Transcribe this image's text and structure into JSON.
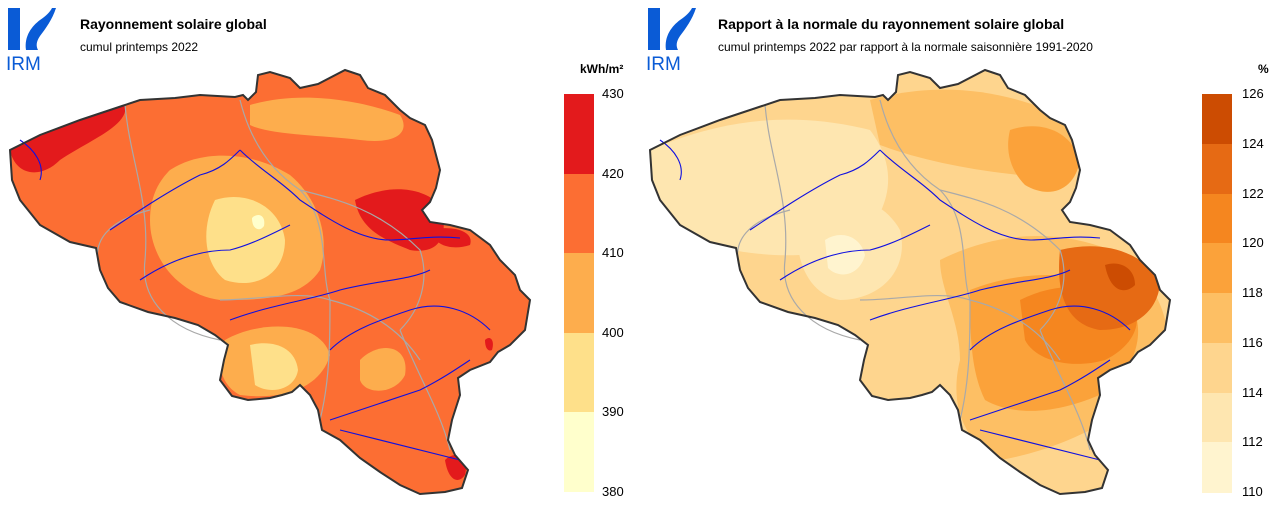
{
  "logo": {
    "text": "IRM",
    "color": "#0a5bd6"
  },
  "panels": [
    {
      "title": "Rayonnement solaire global",
      "subtitle": "cumul printemps 2022",
      "unit": "kWh/m²",
      "legend": {
        "ticks": [
          "430",
          "420",
          "410",
          "400",
          "390",
          "380"
        ],
        "colors": [
          "#e31a1c",
          "#fc6e33",
          "#fdad4d",
          "#fee08a",
          "#ffffcc"
        ]
      },
      "base_color": "#fc6e33"
    },
    {
      "title": "Rapport à la normale du rayonnement solaire global",
      "subtitle": "cumul printemps 2022 par rapport à la normale saisonnière 1991-2020",
      "unit": "%",
      "legend": {
        "ticks": [
          "126",
          "124",
          "122",
          "120",
          "118",
          "116",
          "114",
          "112",
          "110"
        ],
        "colors": [
          "#cc4c02",
          "#e66a14",
          "#f5861f",
          "#fba23a",
          "#fdbf64",
          "#fed58e",
          "#fee6b0",
          "#fff4cf"
        ]
      },
      "base_color": "#fed58e"
    }
  ]
}
